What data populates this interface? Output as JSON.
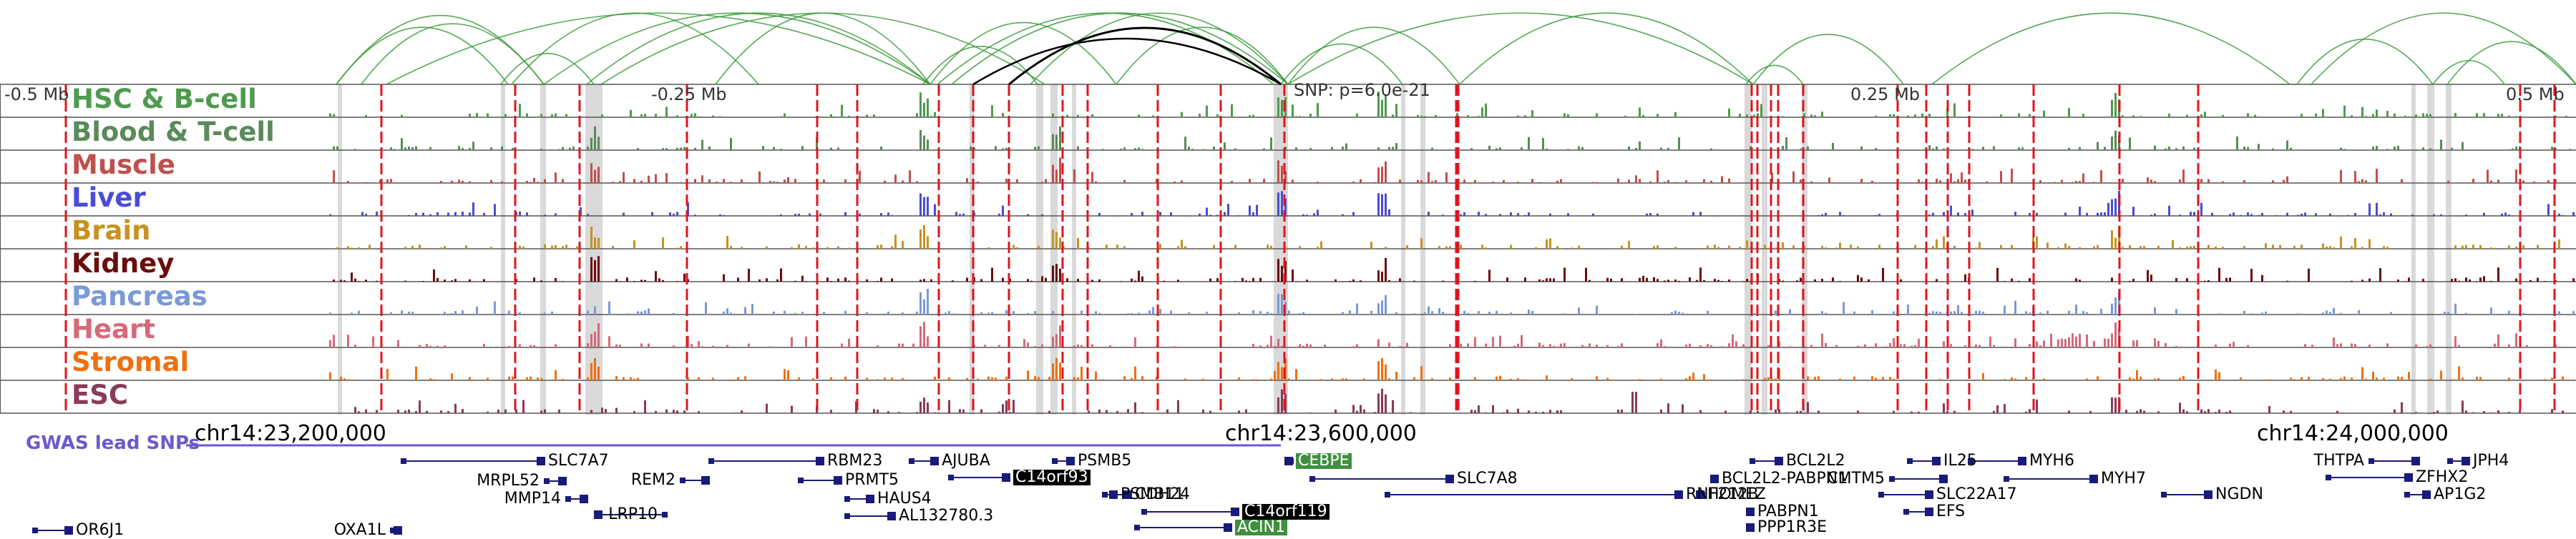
{
  "colors": {
    "connection": "#3a9a3a",
    "connection_highlight": "#000000",
    "variant_line": "#e0141e",
    "highlight_band": "#d9d9d9",
    "gwas": "#6a5acd",
    "gene": "#1a1a7a",
    "gene_highlight_bg": "#000000",
    "gene_snp_bg": "#3f8f3f"
  },
  "axis": {
    "left_label": "-0.5 Mb",
    "mid_left_label": "-0.25 Mb",
    "snp_label": "SNP: p=6.0e-21",
    "mid_right_label": "0.25 Mb",
    "right_label": "0.5 Mb"
  },
  "tracks": [
    {
      "name": "HSC & B-cell",
      "color": "#4f9a4f"
    },
    {
      "name": "Blood & T-cell",
      "color": "#5a8a5a"
    },
    {
      "name": "Muscle",
      "color": "#c0504d"
    },
    {
      "name": "Liver",
      "color": "#4b4bd6"
    },
    {
      "name": "Brain",
      "color": "#c8921e"
    },
    {
      "name": "Kidney",
      "color": "#6b0d0d"
    },
    {
      "name": "Pancreas",
      "color": "#7a9ad6"
    },
    {
      "name": "Heart",
      "color": "#d46a7a"
    },
    {
      "name": "Stromal",
      "color": "#f07010"
    },
    {
      "name": "ESC",
      "color": "#8a3a5a"
    }
  ],
  "gwas_label": "GWAS lead SNPs",
  "coordinates": [
    "chr14:23,200,000",
    "chr14:23,600,000",
    "chr14:24,000,000"
  ],
  "genes": [
    {
      "name": "SLC7A7",
      "style": "plain"
    },
    {
      "name": "MRPL52",
      "style": "plain"
    },
    {
      "name": "MMP14",
      "style": "plain"
    },
    {
      "name": "LRP10",
      "style": "plain"
    },
    {
      "name": "OR6J1",
      "style": "plain"
    },
    {
      "name": "OXA1L",
      "style": "plain"
    },
    {
      "name": "REM2",
      "style": "plain"
    },
    {
      "name": "RBM23",
      "style": "plain"
    },
    {
      "name": "PRMT5",
      "style": "plain"
    },
    {
      "name": "AJUBA",
      "style": "plain"
    },
    {
      "name": "HAUS4",
      "style": "plain"
    },
    {
      "name": "AL132780.3",
      "style": "plain"
    },
    {
      "name": "PSMB5",
      "style": "plain"
    },
    {
      "name": "C14orf93",
      "style": "highlight"
    },
    {
      "name": "PSMB11",
      "style": "plain"
    },
    {
      "name": "CDH24",
      "style": "plain"
    },
    {
      "name": "C14orf119",
      "style": "highlight"
    },
    {
      "name": "ACIN1",
      "style": "snp"
    },
    {
      "name": "CEBPE",
      "style": "snp"
    },
    {
      "name": "SLC7A8",
      "style": "plain"
    },
    {
      "name": "RNF212B",
      "style": "plain"
    },
    {
      "name": "BCL2L2",
      "style": "plain"
    },
    {
      "name": "BCL2L2-PABPN1",
      "style": "plain"
    },
    {
      "name": "HOMEZ",
      "style": "plain"
    },
    {
      "name": "PABPN1",
      "style": "plain"
    },
    {
      "name": "PPP1R3E",
      "style": "plain"
    },
    {
      "name": "IL25",
      "style": "plain"
    },
    {
      "name": "CMTM5",
      "style": "plain"
    },
    {
      "name": "SLC22A17",
      "style": "plain"
    },
    {
      "name": "EFS",
      "style": "plain"
    },
    {
      "name": "MYH6",
      "style": "plain"
    },
    {
      "name": "MYH7",
      "style": "plain"
    },
    {
      "name": "NGDN",
      "style": "plain"
    },
    {
      "name": "THTPA",
      "style": "plain"
    },
    {
      "name": "JPH4",
      "style": "plain"
    },
    {
      "name": "ZFHX2",
      "style": "plain"
    },
    {
      "name": "AP1G2",
      "style": "plain"
    }
  ]
}
